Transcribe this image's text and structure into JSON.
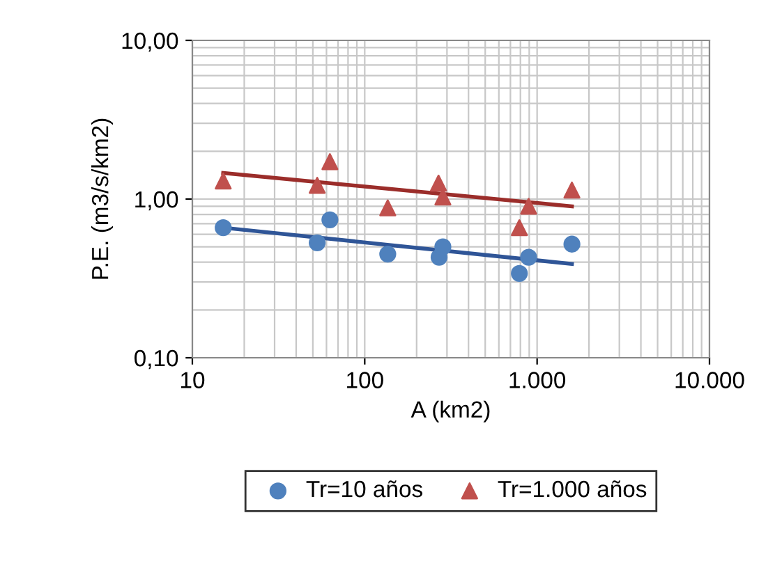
{
  "chart_data": {
    "type": "scatter",
    "xlabel": "A (km2)",
    "ylabel": "P.E. (m3/s/km2)",
    "log": "xy",
    "xlim": [
      10,
      10000
    ],
    "ylim": [
      0.1,
      10
    ],
    "xticks": [
      10,
      100,
      {
        "value": 1000,
        "label": "1.000"
      },
      {
        "value": 10000,
        "label": "10.000"
      }
    ],
    "yticks": [
      {
        "value": 0.1,
        "label": "0,10"
      },
      {
        "value": 1,
        "label": "1,00"
      },
      {
        "value": 10,
        "label": "10,00"
      }
    ],
    "grid": true,
    "legend": "bottom",
    "series": [
      {
        "name": "Tr=10 años",
        "color": "#4f81bd",
        "marker": "circle",
        "x": [
          15.1,
          53,
          62.8,
          136,
          270,
          284,
          789,
          893,
          1592
        ],
        "values": [
          0.66,
          0.53,
          0.74,
          0.45,
          0.43,
          0.5,
          0.34,
          0.43,
          0.52
        ]
      },
      {
        "name": "Tr=1.000 años",
        "color": "#c0504d",
        "marker": "triangle",
        "x": [
          15.1,
          53,
          62.8,
          136,
          268,
          284,
          789,
          893,
          1592
        ],
        "values": [
          1.3,
          1.22,
          1.72,
          0.88,
          1.26,
          1.03,
          0.66,
          0.9,
          1.14
        ]
      },
      {
        "type": "line",
        "color": "#2f5597",
        "marker": "none",
        "x": [
          15.1,
          1592
        ],
        "values": [
          0.66,
          0.39
        ]
      },
      {
        "type": "line",
        "color": "#9b2d2a",
        "marker": "none",
        "x": [
          15.1,
          1592
        ],
        "values": [
          1.46,
          0.9
        ]
      }
    ]
  }
}
